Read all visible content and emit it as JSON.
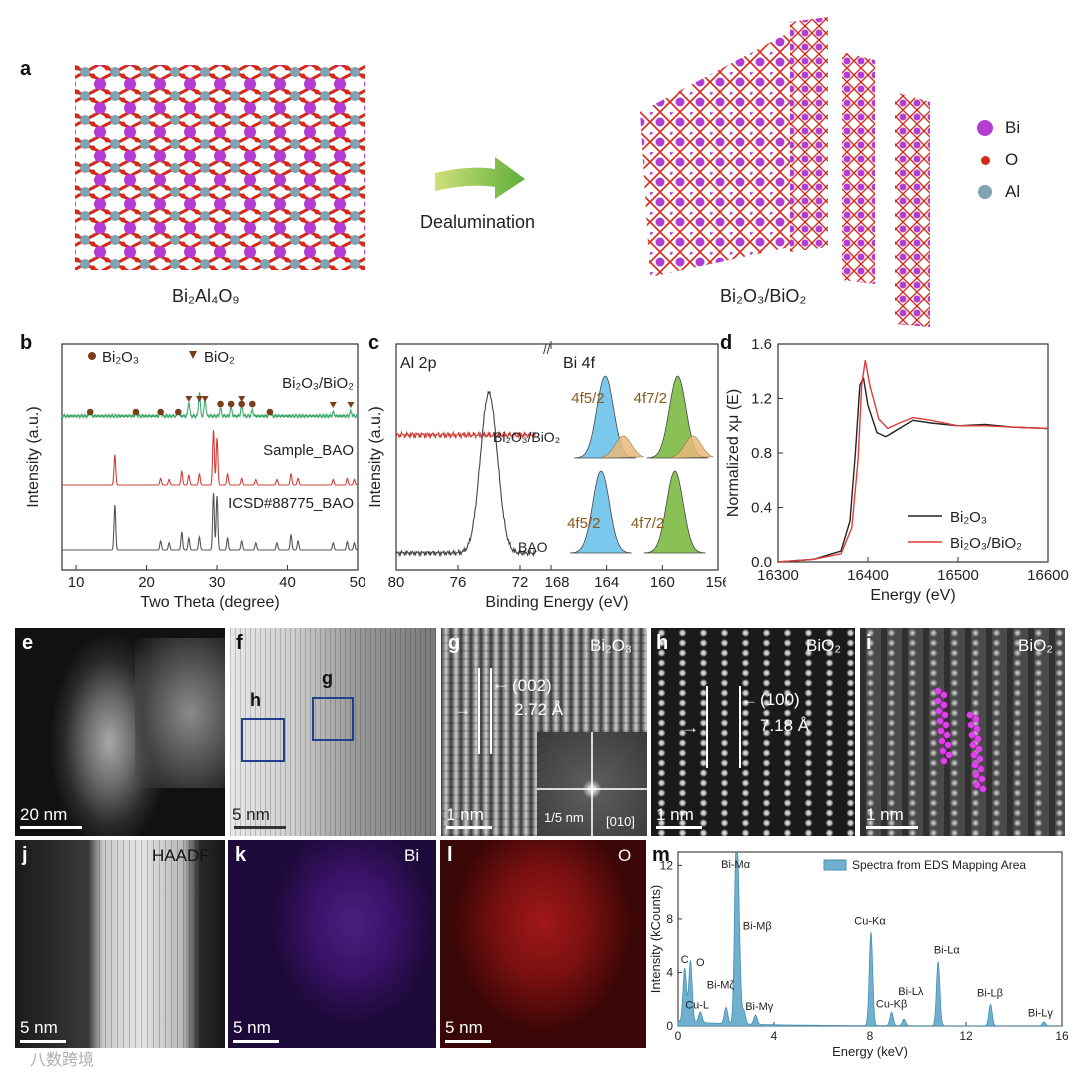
{
  "panel_a": {
    "label": "a",
    "left_caption": "Bi₂Al₄O₉",
    "arrow_caption": "Dealumination",
    "right_caption": "Bi₂O₃/BiO₂",
    "legend": [
      {
        "name": "Bi",
        "color": "#b43cd2"
      },
      {
        "name": "O",
        "color": "#d42a1c"
      },
      {
        "name": "Al",
        "color": "#7fa3b0"
      }
    ]
  },
  "panel_b": {
    "label": "b",
    "ylabel": "Intensity (a.u.)",
    "xlabel": "Two Theta (degree)",
    "legend_bi2o3": "Bi₂O₃",
    "legend_bio2": "BiO₂",
    "trace_labels": [
      "Bi₂O₃/BiO₂",
      "Sample_BAO",
      "ICSD#88775_BAO"
    ]
  },
  "panel_c": {
    "label": "c",
    "ylabel": "Intensity (a.u.)",
    "xlabel": "Binding Energy (eV)",
    "left_title": "Al 2p",
    "right_title": "Bi 4f",
    "sample_label": "Bi₂O₃/BiO₂",
    "bao_label": "BAO",
    "peak_labels": [
      "4f5/2",
      "4f7/2"
    ]
  },
  "panel_d": {
    "label": "d",
    "ylabel": "Normalized xμ (E)",
    "xlabel": "Energy (eV)",
    "legend": [
      "Bi₂O₃",
      "Bi₂O₃/BiO₂"
    ]
  },
  "micrographs": {
    "e": {
      "label": "e",
      "scale": "20 nm"
    },
    "f": {
      "label": "f",
      "scale": "5 nm",
      "box_h": "h",
      "box_g": "g"
    },
    "g": {
      "label": "g",
      "title": "Bi₂O₃",
      "plane": "(002)",
      "spacing": "2.72 Å",
      "scale": "1 nm",
      "fft_scale": "1/5 nm",
      "zone": "[010]"
    },
    "h": {
      "label": "h",
      "title": "BiO₂",
      "plane": "(100)",
      "spacing": "7.18 Å",
      "scale": "1 nm"
    },
    "i": {
      "label": "i",
      "title": "BiO₂",
      "scale": "1 nm"
    },
    "j": {
      "label": "j",
      "title": "HAADF",
      "scale": "5 nm"
    },
    "k": {
      "label": "k",
      "title": "Bi",
      "scale": "5 nm"
    },
    "l": {
      "label": "l",
      "title": "O",
      "scale": "5 nm"
    }
  },
  "panel_m": {
    "label": "m",
    "ylabel": "Intensity (kCounts)",
    "xlabel": "Energy (keV)",
    "legend": "Spectra from EDS Mapping Area",
    "peak_labels": [
      "Bi-Mα",
      "Bi-Mβ",
      "Bi-Mζ",
      "Bi-Mγ",
      "C",
      "O",
      "Cu-L",
      "Cu-Kα",
      "Cu-Kβ",
      "Bi-Lλ",
      "Bi-Lα",
      "Bi-Lβ",
      "Bi-Lγ"
    ]
  },
  "watermark": "八数跨境",
  "chart_data": [
    {
      "type": "line",
      "id": "b",
      "title": "",
      "xlabel": "Two Theta (degree)",
      "ylabel": "Intensity (a.u.)",
      "xlim": [
        8,
        50
      ],
      "xticks": [
        10,
        20,
        30,
        40,
        50
      ],
      "series": [
        {
          "name": "Bi₂O₃/BiO₂",
          "color": "#3fa86b",
          "peaks": [
            [
              12.0,
              0.1
            ],
            [
              18.5,
              0.08
            ],
            [
              22,
              0.1
            ],
            [
              24.5,
              0.1
            ],
            [
              26.0,
              0.35
            ],
            [
              27.5,
              0.6
            ],
            [
              28.3,
              0.45
            ],
            [
              30.5,
              0.2
            ],
            [
              32.0,
              0.22
            ],
            [
              33.5,
              0.3
            ],
            [
              35.0,
              0.15
            ],
            [
              37.5,
              0.12
            ],
            [
              46.5,
              0.1
            ],
            [
              49.0,
              0.12
            ]
          ]
        },
        {
          "name": "Sample_BAO",
          "color": "#d0403a",
          "peaks": [
            [
              15.5,
              0.55
            ],
            [
              22.0,
              0.12
            ],
            [
              23.2,
              0.1
            ],
            [
              25.0,
              0.25
            ],
            [
              26.0,
              0.18
            ],
            [
              27.5,
              0.2
            ],
            [
              29.5,
              1.0
            ],
            [
              30.0,
              0.85
            ],
            [
              31.5,
              0.2
            ],
            [
              33.5,
              0.12
            ],
            [
              35.5,
              0.1
            ],
            [
              38.5,
              0.1
            ],
            [
              40.5,
              0.2
            ],
            [
              41.5,
              0.12
            ],
            [
              46.5,
              0.1
            ],
            [
              48.5,
              0.12
            ],
            [
              49.5,
              0.1
            ]
          ]
        },
        {
          "name": "ICSD#88775_BAO",
          "color": "#555555",
          "peaks": [
            [
              15.5,
              0.75
            ],
            [
              22.0,
              0.15
            ],
            [
              23.2,
              0.12
            ],
            [
              25.0,
              0.3
            ],
            [
              26.0,
              0.2
            ],
            [
              27.5,
              0.22
            ],
            [
              29.5,
              0.95
            ],
            [
              30.0,
              0.9
            ],
            [
              31.5,
              0.2
            ],
            [
              33.5,
              0.15
            ],
            [
              35.5,
              0.12
            ],
            [
              38.5,
              0.12
            ],
            [
              40.5,
              0.25
            ],
            [
              41.5,
              0.15
            ],
            [
              46.5,
              0.12
            ],
            [
              48.5,
              0.14
            ],
            [
              49.5,
              0.12
            ]
          ]
        }
      ],
      "markers": {
        "Bi₂O₃": [
          12.0,
          18.5,
          22.0,
          24.5,
          30.5,
          32.0,
          33.5,
          35.0,
          37.5
        ],
        "BiO₂": [
          26.0,
          27.5,
          28.3,
          33.5,
          46.5,
          49.0
        ]
      }
    },
    {
      "type": "line",
      "id": "c",
      "xlabel": "Binding Energy (eV)",
      "ylabel": "Intensity (a.u.)",
      "xticks_left": [
        80,
        76,
        72
      ],
      "xticks_right": [
        168,
        164,
        160,
        156
      ],
      "series": [
        {
          "name": "Al 2p Bi₂O₃/BiO₂",
          "color": "#d0403a",
          "range": [
            80,
            71
          ],
          "flat": true
        },
        {
          "name": "Al 2p BAO",
          "color": "#444444",
          "range": [
            80,
            71
          ],
          "peak_center": 74.0
        },
        {
          "name": "Bi 4f Bi₂O₃/BiO₂",
          "peaks": [
            {
              "label": "4f5/2",
              "center": 164.1,
              "color": "#6cc3ea"
            },
            {
              "label": "4f7/2",
              "center": 158.9,
              "color": "#7dbb44"
            }
          ]
        },
        {
          "name": "Bi 4f BAO",
          "peaks": [
            {
              "label": "4f5/2",
              "center": 164.4,
              "color": "#6cc3ea"
            },
            {
              "label": "4f7/2",
              "center": 159.1,
              "color": "#7dbb44"
            }
          ]
        }
      ]
    },
    {
      "type": "line",
      "id": "d",
      "xlabel": "Energy (eV)",
      "ylabel": "Normalized xμ (E)",
      "xlim": [
        16300,
        16600
      ],
      "ylim": [
        0.0,
        1.6
      ],
      "xticks": [
        16300,
        16400,
        16500,
        16600
      ],
      "yticks": [
        0.0,
        0.4,
        0.8,
        1.2,
        1.6
      ],
      "series": [
        {
          "name": "Bi₂O₃",
          "color": "#222222",
          "x": [
            16300,
            16340,
            16370,
            16380,
            16386,
            16391,
            16395,
            16400,
            16410,
            16420,
            16435,
            16450,
            16470,
            16500,
            16530,
            16560,
            16600
          ],
          "y": [
            0.0,
            0.02,
            0.08,
            0.3,
            0.8,
            1.3,
            1.35,
            1.15,
            0.95,
            0.92,
            0.98,
            1.04,
            1.02,
            1.0,
            1.01,
            0.99,
            0.98
          ]
        },
        {
          "name": "Bi₂O₃/BiO₂",
          "color": "#e03c3c",
          "x": [
            16300,
            16340,
            16370,
            16382,
            16389,
            16393,
            16397,
            16402,
            16412,
            16422,
            16435,
            16450,
            16470,
            16500,
            16530,
            16560,
            16600
          ],
          "y": [
            0.0,
            0.02,
            0.06,
            0.25,
            0.75,
            1.3,
            1.48,
            1.3,
            1.05,
            0.98,
            1.02,
            1.06,
            1.04,
            1.0,
            1.0,
            0.99,
            0.98
          ]
        }
      ]
    },
    {
      "type": "area",
      "id": "m",
      "xlabel": "Energy (keV)",
      "ylabel": "Intensity (kCounts)",
      "xlim": [
        0,
        16
      ],
      "ylim": [
        0,
        13
      ],
      "xticks": [
        0,
        4,
        8,
        12,
        16
      ],
      "yticks": [
        0,
        4,
        8,
        12
      ],
      "series": [
        {
          "name": "Spectra from EDS Mapping Area",
          "color": "#6fb0cf",
          "peaks": [
            [
              0.28,
              4.0
            ],
            [
              0.52,
              4.6
            ],
            [
              0.93,
              0.8
            ],
            [
              2.0,
              1.2
            ],
            [
              2.42,
              12.5
            ],
            [
              2.53,
              6.5
            ],
            [
              2.74,
              1.0
            ],
            [
              3.23,
              0.7
            ],
            [
              8.04,
              7.0
            ],
            [
              8.9,
              1.0
            ],
            [
              9.42,
              0.5
            ],
            [
              10.84,
              4.8
            ],
            [
              13.02,
              1.6
            ],
            [
              15.25,
              0.3
            ]
          ]
        }
      ]
    }
  ]
}
